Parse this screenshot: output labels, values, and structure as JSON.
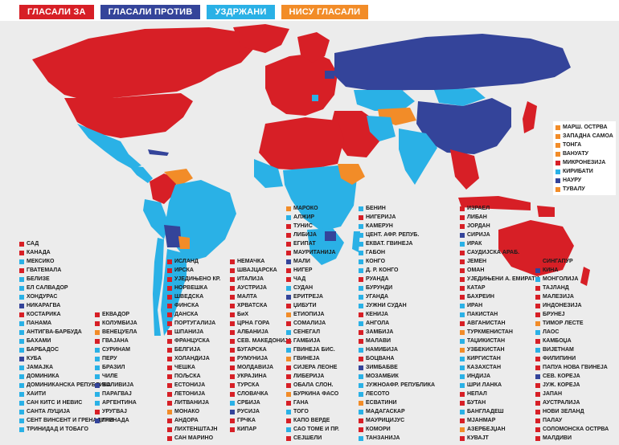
{
  "colors": {
    "yes": "#d71f26",
    "no": "#34449a",
    "abstain": "#2ab1e6",
    "absent": "#f28c28",
    "water": "#ececec"
  },
  "legend": [
    {
      "key": "yes",
      "label": "ГЛАСАЛИ ЗА"
    },
    {
      "key": "no",
      "label": "ГЛАСАЛИ ПРОТИВ"
    },
    {
      "key": "abstain",
      "label": "УЗДРЖАНИ"
    },
    {
      "key": "absent",
      "label": "НИСУ ГЛАСАЛИ"
    }
  ],
  "pacific_box": [
    {
      "name": "МАРШ. ОСТРВА",
      "vote": "absent"
    },
    {
      "name": "ЗАПАДНА САМОА",
      "vote": "absent"
    },
    {
      "name": "ТОНГА",
      "vote": "absent"
    },
    {
      "name": "ВАНУАТУ",
      "vote": "absent"
    },
    {
      "name": "МИКРОНЕЗИЈА",
      "vote": "yes"
    },
    {
      "name": "КИРИБАТИ",
      "vote": "abstain"
    },
    {
      "name": "НАУРУ",
      "vote": "no"
    },
    {
      "name": "ТУВАЛУ",
      "vote": "absent"
    }
  ],
  "columns": [
    [
      {
        "name": "САД",
        "vote": "yes"
      },
      {
        "name": "КАНАДА",
        "vote": "yes"
      },
      {
        "name": "МЕКСИКО",
        "vote": "abstain"
      },
      {
        "name": "ГВАТЕМАЛА",
        "vote": "yes"
      },
      {
        "name": "БЕЛИЗЕ",
        "vote": "abstain"
      },
      {
        "name": "ЕЛ САЛВАДОР",
        "vote": "abstain"
      },
      {
        "name": "ХОНДУРАС",
        "vote": "abstain"
      },
      {
        "name": "НИКАРАГВА",
        "vote": "no"
      },
      {
        "name": "КОСТАРИКА",
        "vote": "yes"
      },
      {
        "name": "ПАНАМА",
        "vote": "abstain"
      },
      {
        "name": "АНТИГВА-БАРБУДА",
        "vote": "abstain"
      },
      {
        "name": "БАХАМИ",
        "vote": "abstain"
      },
      {
        "name": "БАРБАДОС",
        "vote": "abstain"
      },
      {
        "name": "КУБА",
        "vote": "no"
      },
      {
        "name": "ЈАМАЈКА",
        "vote": "abstain"
      },
      {
        "name": "ДОМИНИКА",
        "vote": "abstain"
      },
      {
        "name": "ДОМИНИКАНСКА РЕПУБЛИКА",
        "vote": "abstain"
      },
      {
        "name": "ХАИТИ",
        "vote": "abstain"
      },
      {
        "name": "САН КИТС И НЕВИС",
        "vote": "abstain"
      },
      {
        "name": "САНТА ЛУЦИЈА",
        "vote": "abstain"
      },
      {
        "name": "СЕНТ ВИНСЕНТ И ГРЕНАДИНИ",
        "vote": "abstain"
      },
      {
        "name": "ТРИНИДАД И ТОБАГО",
        "vote": "abstain"
      }
    ],
    [
      {
        "name": "ЕКВАДОР",
        "vote": "yes"
      },
      {
        "name": "КОЛУМБИЈА",
        "vote": "yes"
      },
      {
        "name": "ВЕНЕЦУЕЛА",
        "vote": "absent"
      },
      {
        "name": "ГВАЈАНА",
        "vote": "yes"
      },
      {
        "name": "СУРИНАМ",
        "vote": "abstain"
      },
      {
        "name": "ПЕРУ",
        "vote": "abstain"
      },
      {
        "name": "БРАЗИЛ",
        "vote": "abstain"
      },
      {
        "name": "ЧИЛЕ",
        "vote": "abstain"
      },
      {
        "name": "БОЛИВИЈА",
        "vote": "no"
      },
      {
        "name": "ПАРАГВАЈ",
        "vote": "abstain"
      },
      {
        "name": "АРГЕНТИНА",
        "vote": "abstain"
      },
      {
        "name": "УРУГВАЈ",
        "vote": "yes"
      },
      {
        "name": "ГРЕНАДА",
        "vote": "no"
      }
    ],
    [
      {
        "name": "ИСЛАНД",
        "vote": "yes"
      },
      {
        "name": "ИРСКА",
        "vote": "yes"
      },
      {
        "name": "УЈЕДИЊЕНО КР.",
        "vote": "yes"
      },
      {
        "name": "НОРВЕШКА",
        "vote": "yes"
      },
      {
        "name": "ШВЕДСКА",
        "vote": "yes"
      },
      {
        "name": "ФИНСКА",
        "vote": "yes"
      },
      {
        "name": "ДАНСКА",
        "vote": "yes"
      },
      {
        "name": "ПОРТУГАЛИЈА",
        "vote": "yes"
      },
      {
        "name": "ШПАНИЈА",
        "vote": "yes"
      },
      {
        "name": "ФРАНЦУСКА",
        "vote": "yes"
      },
      {
        "name": "БЕЛГИЈА",
        "vote": "yes"
      },
      {
        "name": "ХОЛАНДИЈА",
        "vote": "yes"
      },
      {
        "name": "ЧЕШКА",
        "vote": "yes"
      },
      {
        "name": "ПОЉСКА",
        "vote": "yes"
      },
      {
        "name": "ЕСТОНИЈА",
        "vote": "yes"
      },
      {
        "name": "ЛЕТОНИЈА",
        "vote": "yes"
      },
      {
        "name": "ЛИТВАНИЈА",
        "vote": "yes"
      },
      {
        "name": "МОНАКО",
        "vote": "absent"
      },
      {
        "name": "АНДОРА",
        "vote": "yes"
      },
      {
        "name": "ЛИХТЕНШТАЈН",
        "vote": "yes"
      },
      {
        "name": "САН МАРИНО",
        "vote": "yes"
      }
    ],
    [
      {
        "name": "НЕМАЧКА",
        "vote": "yes"
      },
      {
        "name": "ШВАЈЦАРСКА",
        "vote": "yes"
      },
      {
        "name": "ИТАЛИЈА",
        "vote": "yes"
      },
      {
        "name": "АУСТРИЈА",
        "vote": "yes"
      },
      {
        "name": "МАЛТА",
        "vote": "yes"
      },
      {
        "name": "ХРВАТСКА",
        "vote": "yes"
      },
      {
        "name": "БиХ",
        "vote": "yes"
      },
      {
        "name": "ЦРНА ГОРА",
        "vote": "yes"
      },
      {
        "name": "АЛБАНИЈА",
        "vote": "yes"
      },
      {
        "name": "СЕВ. МАКЕДОНИЈА",
        "vote": "yes"
      },
      {
        "name": "БУГАРСКА",
        "vote": "yes"
      },
      {
        "name": "РУМУНИЈА",
        "vote": "yes"
      },
      {
        "name": "МОЛДАВИЈА",
        "vote": "yes"
      },
      {
        "name": "УКРАЈИНА",
        "vote": "yes"
      },
      {
        "name": "ТУРСКА",
        "vote": "yes"
      },
      {
        "name": "СЛОВАЧКА",
        "vote": "yes"
      },
      {
        "name": "СРБИЈА",
        "vote": "abstain"
      },
      {
        "name": "РУСИЈА",
        "vote": "no"
      },
      {
        "name": "ГРЧКА",
        "vote": "yes"
      },
      {
        "name": "КИПАР",
        "vote": "yes"
      }
    ],
    [
      {
        "name": "МАРОКО",
        "vote": "absent"
      },
      {
        "name": "АЛЖИР",
        "vote": "abstain"
      },
      {
        "name": "ТУНИС",
        "vote": "yes"
      },
      {
        "name": "ЛИБИЈА",
        "vote": "yes"
      },
      {
        "name": "ЕГИПАТ",
        "vote": "yes"
      },
      {
        "name": "МАУРИТАНИЈА",
        "vote": "yes"
      },
      {
        "name": "МАЛИ",
        "vote": "no"
      },
      {
        "name": "НИГЕР",
        "vote": "yes"
      },
      {
        "name": "ЧАД",
        "vote": "yes"
      },
      {
        "name": "СУДАН",
        "vote": "abstain"
      },
      {
        "name": "ЕРИТРЕЈА",
        "vote": "no"
      },
      {
        "name": "ЏИБУТИ",
        "vote": "yes"
      },
      {
        "name": "ЕТИОПИЈА",
        "vote": "absent"
      },
      {
        "name": "СОМАЛИЈА",
        "vote": "yes"
      },
      {
        "name": "СЕНЕГАЛ",
        "vote": "abstain"
      },
      {
        "name": "ГАМБИЈА",
        "vote": "yes"
      },
      {
        "name": "ГВИНЕЈА БИС.",
        "vote": "abstain"
      },
      {
        "name": "ГВИНЕЈА",
        "vote": "absent"
      },
      {
        "name": "СИЈЕРА ЛЕОНЕ",
        "vote": "yes"
      },
      {
        "name": "ЛИБЕРИЈА",
        "vote": "yes"
      },
      {
        "name": "ОБАЛА СЛОН.",
        "vote": "yes"
      },
      {
        "name": "БУРКИНА ФАСО",
        "vote": "absent"
      },
      {
        "name": "ГАНА",
        "vote": "yes"
      },
      {
        "name": "ТОГО",
        "vote": "abstain"
      },
      {
        "name": "КАПО ВЕРДЕ",
        "vote": "yes"
      },
      {
        "name": "САО ТОМЕ И ПР.",
        "vote": "abstain"
      },
      {
        "name": "СЕЈШЕЛИ",
        "vote": "yes"
      }
    ],
    [
      {
        "name": "БЕНИН",
        "vote": "abstain"
      },
      {
        "name": "НИГЕРИЈА",
        "vote": "yes"
      },
      {
        "name": "КАМЕРУН",
        "vote": "abstain"
      },
      {
        "name": "ЦЕНТ. АФР. РЕПУБ.",
        "vote": "abstain"
      },
      {
        "name": "ЕКВАТ. ГВИНЕЈА",
        "vote": "abstain"
      },
      {
        "name": "ГАБОН",
        "vote": "abstain"
      },
      {
        "name": "КОНГО",
        "vote": "abstain"
      },
      {
        "name": "Д. Р. КОНГО",
        "vote": "abstain"
      },
      {
        "name": "РУАНДА",
        "vote": "yes"
      },
      {
        "name": "БУРУНДИ",
        "vote": "abstain"
      },
      {
        "name": "УГАНДА",
        "vote": "abstain"
      },
      {
        "name": "ЈУЖНИ СУДАН",
        "vote": "abstain"
      },
      {
        "name": "КЕНИЈА",
        "vote": "yes"
      },
      {
        "name": "АНГОЛА",
        "vote": "abstain"
      },
      {
        "name": "ЗАМБИЈА",
        "vote": "yes"
      },
      {
        "name": "МАЛАВИ",
        "vote": "yes"
      },
      {
        "name": "НАМИБИЈА",
        "vote": "abstain"
      },
      {
        "name": "БОЦВАНА",
        "vote": "yes"
      },
      {
        "name": "ЗИМБАБВЕ",
        "vote": "no"
      },
      {
        "name": "МОЗАМБИК",
        "vote": "abstain"
      },
      {
        "name": "ЈУЖНОАФР. РЕПУБЛИКА",
        "vote": "abstain"
      },
      {
        "name": "ЛЕСОТО",
        "vote": "abstain"
      },
      {
        "name": "ЕСВАТИНИ",
        "vote": "absent"
      },
      {
        "name": "МАДАГАСКАР",
        "vote": "abstain"
      },
      {
        "name": "МАУРИЦИЈУС",
        "vote": "yes"
      },
      {
        "name": "КОМОРИ",
        "vote": "yes"
      },
      {
        "name": "ТАНЗАНИЈА",
        "vote": "abstain"
      }
    ],
    [
      {
        "name": "ИЗРАЕЛ",
        "vote": "yes"
      },
      {
        "name": "ЛИБАН",
        "vote": "yes"
      },
      {
        "name": "ЈОРДАН",
        "vote": "yes"
      },
      {
        "name": "СИРИЈА",
        "vote": "no"
      },
      {
        "name": "ИРАК",
        "vote": "abstain"
      },
      {
        "name": "САУДИЈСКА АРАБ.",
        "vote": "yes"
      },
      {
        "name": "ЈЕМЕН",
        "vote": "yes"
      },
      {
        "name": "ОМАН",
        "vote": "yes"
      },
      {
        "name": "УЈЕДИЊЕНИ А. ЕМИРАТИ",
        "vote": "yes"
      },
      {
        "name": "КАТАР",
        "vote": "yes"
      },
      {
        "name": "БАХРЕИН",
        "vote": "yes"
      },
      {
        "name": "ИРАН",
        "vote": "abstain"
      },
      {
        "name": "ПАКИСТАН",
        "vote": "abstain"
      },
      {
        "name": "АВГАНИСТАН",
        "vote": "yes"
      },
      {
        "name": "ТУРКМЕНИСТАН",
        "vote": "absent"
      },
      {
        "name": "ТАЏИКИСТАН",
        "vote": "abstain"
      },
      {
        "name": "УЗБЕКИСТАН",
        "vote": "absent"
      },
      {
        "name": "КИРГИСТАН",
        "vote": "abstain"
      },
      {
        "name": "КАЗАХСТАН",
        "vote": "abstain"
      },
      {
        "name": "ИНДИЈА",
        "vote": "abstain"
      },
      {
        "name": "ШРИ ЛАНКА",
        "vote": "abstain"
      },
      {
        "name": "НЕПАЛ",
        "vote": "yes"
      },
      {
        "name": "БУТАН",
        "vote": "yes"
      },
      {
        "name": "БАНГЛАДЕШ",
        "vote": "abstain"
      },
      {
        "name": "МЈАНМАР",
        "vote": "yes"
      },
      {
        "name": "АЗЕРБЕЈЏАН",
        "vote": "absent"
      },
      {
        "name": "КУВАЈТ",
        "vote": "yes"
      }
    ],
    [
      {
        "name": "СИНГАПУР",
        "vote": "yes"
      },
      {
        "name": "КИНА",
        "vote": "no"
      },
      {
        "name": "МОНГОЛИЈА",
        "vote": "abstain"
      },
      {
        "name": "ТАЈЛАНД",
        "vote": "yes"
      },
      {
        "name": "МАЛЕЗИЈА",
        "vote": "yes"
      },
      {
        "name": "ИНДОНЕЗИЈА",
        "vote": "yes"
      },
      {
        "name": "БРУНЕЈ",
        "vote": "yes"
      },
      {
        "name": "ТИМОР ЛЕСТЕ",
        "vote": "absent"
      },
      {
        "name": "ЛАОС",
        "vote": "abstain"
      },
      {
        "name": "КАМБОЏА",
        "vote": "yes"
      },
      {
        "name": "ВИЈЕТНАМ",
        "vote": "abstain"
      },
      {
        "name": "ФИЛИПИНИ",
        "vote": "yes"
      },
      {
        "name": "ПАПУА НОВА ГВИНЕЈА",
        "vote": "yes"
      },
      {
        "name": "СЕВ. КОРЕЈА",
        "vote": "no"
      },
      {
        "name": "ЈУЖ. КОРЕЈА",
        "vote": "yes"
      },
      {
        "name": "ЈАПАН",
        "vote": "yes"
      },
      {
        "name": "АУСТРАЛИЈА",
        "vote": "yes"
      },
      {
        "name": "НОВИ ЗЕЛАНД",
        "vote": "yes"
      },
      {
        "name": "ПАЛАУ",
        "vote": "yes"
      },
      {
        "name": "СОЛОМОНСКА ОСТРВА",
        "vote": "yes"
      },
      {
        "name": "МАЛДИВИ",
        "vote": "yes"
      }
    ]
  ]
}
